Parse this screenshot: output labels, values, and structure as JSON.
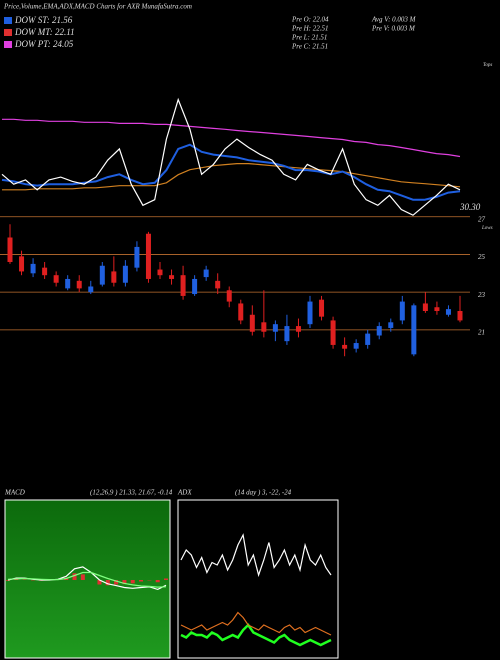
{
  "chart_data": [
    {
      "type": "line",
      "title": "Price,Volume,EMA,ADX,MACD Charts for AXR MunafaSutra.com",
      "legend": [
        {
          "label": "DOW ST: 21.56",
          "color": "#1f5fe0"
        },
        {
          "label": "DOW MT: 22.11",
          "color": "#e03030"
        },
        {
          "label": "DOW PT: 24.05",
          "color": "#e040e0"
        }
      ],
      "info": [
        "Pre  O: 22.04",
        "Pre  H: 22.51",
        "Pre  L: 21.51",
        "Pre  C: 21.51",
        "Avg  V: 0.003 M",
        "Pre  V: 0.003 M"
      ],
      "annotations": [
        "30.30",
        "Tops"
      ],
      "ylim": [
        18,
        28.5
      ],
      "series": [
        {
          "color": "#e040e0",
          "values": [
            25.0,
            25.0,
            24.93,
            24.93,
            24.86,
            24.86,
            24.86,
            24.79,
            24.79,
            24.79,
            24.71,
            24.71,
            24.71,
            24.64,
            24.64,
            24.57,
            24.5,
            24.43,
            24.36,
            24.29,
            24.21,
            24.14,
            24.07,
            24.0,
            23.93,
            23.86,
            23.79,
            23.71,
            23.64,
            23.57,
            23.43,
            23.36,
            23.21,
            23.14,
            23.0,
            22.86,
            22.71,
            22.57,
            22.5,
            22.36
          ]
        },
        {
          "color": "#d08020",
          "values": [
            20.0,
            20.0,
            20.0,
            20.07,
            20.07,
            20.07,
            20.07,
            20.14,
            20.14,
            20.21,
            20.29,
            20.29,
            20.29,
            20.29,
            20.5,
            21.07,
            21.43,
            21.57,
            21.71,
            21.79,
            21.86,
            21.86,
            21.79,
            21.71,
            21.64,
            21.57,
            21.5,
            21.43,
            21.36,
            21.29,
            21.14,
            21.0,
            20.86,
            20.71,
            20.57,
            20.5,
            20.43,
            20.36,
            20.29,
            20.21
          ]
        },
        {
          "color": "#1f5fe0",
          "values": [
            20.7,
            20.6,
            20.4,
            20.3,
            20.4,
            20.4,
            20.4,
            20.5,
            20.6,
            20.9,
            21.1,
            20.7,
            20.4,
            20.5,
            21.4,
            22.9,
            23.2,
            22.7,
            22.5,
            22.4,
            22.3,
            22.1,
            22.0,
            21.9,
            21.7,
            21.4,
            21.4,
            21.3,
            21.1,
            21.3,
            20.9,
            20.4,
            20.0,
            19.9,
            19.6,
            19.3,
            19.3,
            19.5,
            19.8,
            19.9
          ]
        },
        {
          "color": "#ffffff",
          "values": [
            21.1,
            20.4,
            20.7,
            20.0,
            20.7,
            20.9,
            20.6,
            20.4,
            20.9,
            22.1,
            22.9,
            20.4,
            18.9,
            19.3,
            23.6,
            26.4,
            24.3,
            21.1,
            21.8,
            22.9,
            23.6,
            23.0,
            22.5,
            22.1,
            21.1,
            20.7,
            21.8,
            21.4,
            21.1,
            22.9,
            20.4,
            19.3,
            18.9,
            19.6,
            18.6,
            18.2,
            18.9,
            19.6,
            20.4,
            20.0
          ]
        }
      ]
    },
    {
      "type": "candlestick",
      "annotations": [
        "Lows"
      ],
      "ylim": [
        19.4,
        27.2
      ],
      "yticks": [
        21,
        23,
        25,
        27
      ],
      "colors": {
        "up": "#2060e0",
        "down": "#e02020"
      },
      "open": [
        25.9,
        24.9,
        24.0,
        24.3,
        23.9,
        23.2,
        23.6,
        23.0,
        23.4,
        24.1,
        23.5,
        24.3,
        26.1,
        24.2,
        23.9,
        23.9,
        22.9,
        23.8,
        23.6,
        23.1,
        22.4,
        21.8,
        21.4,
        20.9,
        20.4,
        21.2,
        21.3,
        22.6,
        21.5,
        20.2,
        20.0,
        20.2,
        20.7,
        21.1,
        21.5,
        19.7,
        22.4,
        22.2,
        21.8,
        22.0
      ],
      "high": [
        26.6,
        25.2,
        24.8,
        24.6,
        24.1,
        23.9,
        23.9,
        23.6,
        24.6,
        24.9,
        24.7,
        25.7,
        26.2,
        24.6,
        24.2,
        24.4,
        23.9,
        24.4,
        24.0,
        23.3,
        22.6,
        22.3,
        23.1,
        21.5,
        21.8,
        21.6,
        22.8,
        22.8,
        21.7,
        20.6,
        20.5,
        21.0,
        21.4,
        21.6,
        22.8,
        22.4,
        23.0,
        22.5,
        22.3,
        22.8
      ],
      "low": [
        24.5,
        23.9,
        23.8,
        23.7,
        23.3,
        23.1,
        23.0,
        22.9,
        23.3,
        23.3,
        23.3,
        24.1,
        23.5,
        23.7,
        23.4,
        22.6,
        22.8,
        23.6,
        22.9,
        22.2,
        21.3,
        20.7,
        20.6,
        20.4,
        20.2,
        20.6,
        21.1,
        21.5,
        20.0,
        19.6,
        19.8,
        20.0,
        20.5,
        20.9,
        21.3,
        19.6,
        21.9,
        21.8,
        21.7,
        21.4
      ],
      "close": [
        24.6,
        24.1,
        24.5,
        23.9,
        23.5,
        23.7,
        23.2,
        23.3,
        24.4,
        23.5,
        24.4,
        25.4,
        23.7,
        23.9,
        23.7,
        22.8,
        23.7,
        24.2,
        23.2,
        22.5,
        21.5,
        20.9,
        20.9,
        21.3,
        21.2,
        20.9,
        22.5,
        21.7,
        20.2,
        20.0,
        20.3,
        20.8,
        21.2,
        21.4,
        22.5,
        22.3,
        22.0,
        22.0,
        22.1,
        21.5
      ]
    },
    {
      "type": "macd",
      "title": "MACD",
      "subtitle": "(12,26,9 ) 21.33, 21.67, -0.14",
      "ylim": [
        -2,
        2
      ],
      "series": [
        {
          "color": "#ffffff",
          "values": [
            0,
            0.05,
            0.05,
            0.02,
            0,
            0,
            0.02,
            0.1,
            0.3,
            0.35,
            0.2,
            0,
            -0.1,
            -0.15,
            -0.2,
            -0.22,
            -0.2,
            -0.18,
            -0.25,
            -0.14
          ]
        },
        {
          "color": "#80ff80",
          "values": [
            0.02,
            0.03,
            0.04,
            0.03,
            0.02,
            0.01,
            0.01,
            0.04,
            0.12,
            0.2,
            0.2,
            0.12,
            0.04,
            -0.03,
            -0.09,
            -0.13,
            -0.16,
            -0.17,
            -0.19,
            -0.18
          ]
        }
      ],
      "histogram": {
        "color": "#e03030",
        "values": [
          -0.02,
          0.02,
          0.01,
          -0.01,
          -0.02,
          -0.01,
          0.01,
          0.06,
          0.18,
          0.15,
          0,
          -0.12,
          -0.14,
          -0.12,
          -0.11,
          -0.09,
          -0.04,
          -0.01,
          -0.06,
          0.04
        ]
      }
    },
    {
      "type": "adx",
      "title": "ADX",
      "subtitle": "(14 day ) 3, -22, -24",
      "ylim": [
        0,
        60
      ],
      "series": [
        {
          "color": "#ffffff",
          "values": [
            38,
            42,
            40,
            35,
            39,
            33,
            37,
            36,
            40,
            34,
            38,
            44,
            48,
            36,
            40,
            32,
            38,
            45,
            35,
            38,
            42,
            36,
            40,
            34,
            44,
            38,
            36,
            40,
            35,
            32
          ]
        },
        {
          "color": "#20ff20",
          "values": [
            8,
            7,
            9,
            8,
            8,
            7,
            9,
            8,
            6,
            7,
            8,
            7,
            10,
            12,
            9,
            8,
            7,
            6,
            5,
            7,
            8,
            6,
            5,
            4,
            5,
            6,
            5,
            4,
            5,
            6
          ]
        },
        {
          "color": "#e07020",
          "values": [
            12,
            11,
            10,
            11,
            12,
            10,
            11,
            12,
            13,
            12,
            14,
            17,
            15,
            12,
            11,
            10,
            12,
            11,
            10,
            9,
            11,
            12,
            10,
            11,
            9,
            10,
            11,
            10,
            9,
            8
          ]
        }
      ]
    }
  ]
}
